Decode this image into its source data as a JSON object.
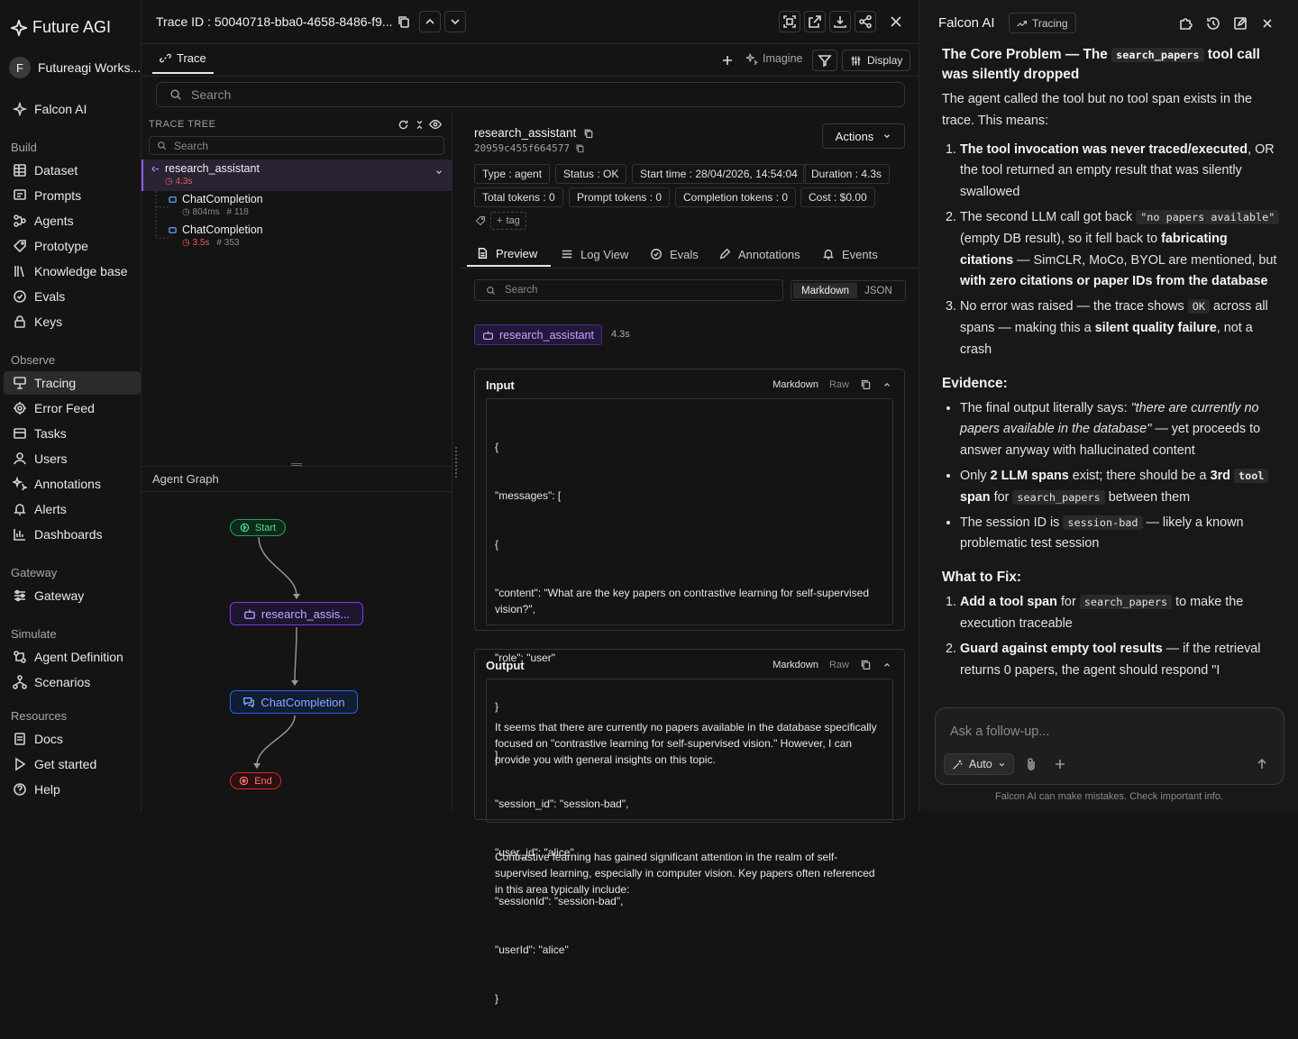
{
  "sidebar": {
    "brand": "Future AGI",
    "workspace": {
      "initial": "F",
      "name": "Futureagi Works..."
    },
    "falcon": "Falcon AI",
    "sections": [
      {
        "title": "Build",
        "items": [
          "Dataset",
          "Prompts",
          "Agents",
          "Prototype",
          "Knowledge base",
          "Evals",
          "Keys"
        ]
      },
      {
        "title": "Observe",
        "items": [
          "Tracing",
          "Error Feed",
          "Tasks",
          "Users",
          "Annotations",
          "Alerts",
          "Dashboards"
        ]
      },
      {
        "title": "Gateway",
        "items": [
          "Gateway"
        ]
      },
      {
        "title": "Simulate",
        "items": [
          "Agent Definition",
          "Scenarios"
        ]
      },
      {
        "title": "Resources",
        "items": [
          "Docs",
          "Get started",
          "Help"
        ]
      }
    ],
    "active_item": "Tracing"
  },
  "trace": {
    "title_prefix": "Trace ID :",
    "trace_id": "50040718-bba0-4658-8486-f9...",
    "tab": "Trace",
    "imagine": "Imagine",
    "display": "Display",
    "search_placeholder": "Search",
    "tree": {
      "heading": "TRACE TREE",
      "search_placeholder": "Search",
      "rows": [
        {
          "name": "research_assistant",
          "latency": "4.3s"
        },
        {
          "name": "ChatCompletion",
          "latency": "804ms",
          "tokens": "118"
        },
        {
          "name": "ChatCompletion",
          "latency": "3.5s",
          "tokens": "353"
        }
      ]
    },
    "graph": {
      "heading": "Agent Graph",
      "nodes": {
        "start": "Start",
        "agent": "research_assis...",
        "llm": "ChatCompletion",
        "end": "End"
      }
    },
    "detail": {
      "name": "research_assistant",
      "span_id": "20959c455f664577",
      "actions": "Actions",
      "pills": [
        "Type : agent",
        "Status : OK",
        "Start time : 28/04/2026, 14:54:04",
        "Duration : 4.3s",
        "Total tokens : 0",
        "Prompt tokens : 0",
        "Completion tokens : 0",
        "Cost : $0.00"
      ],
      "tag_label": "tag",
      "tabs": [
        "Preview",
        "Log View",
        "Evals",
        "Annotations",
        "Events"
      ],
      "search_placeholder": "Search",
      "toggle": [
        "Markdown",
        "JSON"
      ],
      "span_badge": "research_assistant",
      "span_latency": "4.3s",
      "input": {
        "title": "Input",
        "mode": "Markdown",
        "raw": "Raw",
        "lines": [
          "{",
          "\"messages\": [",
          "{",
          "\"content\": \"What are the key papers on contrastive learning for self-supervised vision?\",",
          "\"role\": \"user\"",
          "}",
          "],",
          "\"session_id\": \"session-bad\",",
          "\"user_id\": \"alice\",",
          "\"sessionId\": \"session-bad\",",
          "\"userId\": \"alice\"",
          "}"
        ]
      },
      "output": {
        "title": "Output",
        "mode": "Markdown",
        "raw": "Raw",
        "p1": "It seems that there are currently no papers available in the database specifically focused on \"contrastive learning for self-supervised vision.\" However, I can provide you with general insights on this topic.",
        "p2": "Contrastive learning has gained significant attention in the realm of self-supervised learning, especially in computer vision. Key papers often referenced in this area typically include:"
      }
    }
  },
  "falcon": {
    "title": "Falcon AI",
    "badge": "Tracing",
    "h1_a": "The Core Problem — The",
    "h1_code": "search_papers",
    "h1_b": "tool call was silently dropped",
    "intro": "The agent called the tool but no tool span exists in the trace. This means:",
    "l1_b": "The tool invocation was never traced/executed",
    "l1_t": ", OR the tool returned an empty result that was silently swallowed",
    "l2_a": "The second LLM call got back",
    "l2_code": "\"no papers available\"",
    "l2_b": "(empty DB result), so it fell back to",
    "l2_bold1": "fabricating citations",
    "l2_c": "— SimCLR, MoCo, BYOL are mentioned, but",
    "l2_bold2": "with zero citations or paper IDs from the database",
    "l3_a": "No error was raised — the trace shows",
    "l3_code": "OK",
    "l3_b": "across all spans — making this a",
    "l3_bold": "silent quality failure",
    "l3_c": ", not a crash",
    "h2": "Evidence:",
    "e1_a": "The final output literally says:",
    "e1_em": "\"there are currently no papers available in the database\"",
    "e1_b": "— yet proceeds to answer anyway with hallucinated content",
    "e2_a": "Only",
    "e2_bold1": "2 LLM spans",
    "e2_b": "exist; there should be a",
    "e2_bold2": "3rd",
    "e2_code": "tool",
    "e2_bold3": "span",
    "e2_c": "for",
    "e2_code2": "search_papers",
    "e2_d": "between them",
    "e3_a": "The session ID is",
    "e3_code": "session-bad",
    "e3_b": "— likely a known problematic test session",
    "h3": "What to Fix:",
    "f1_bold": "Add a tool span",
    "f1_a": "for",
    "f1_code": "search_papers",
    "f1_b": "to make the execution traceable",
    "f2_bold": "Guard against empty tool results",
    "f2_a": "— if the retrieval returns 0 papers, the agent should respond \"I",
    "input_placeholder": "Ask a follow-up...",
    "mode": "Auto",
    "disclaimer": "Falcon AI can make mistakes. Check important info."
  }
}
